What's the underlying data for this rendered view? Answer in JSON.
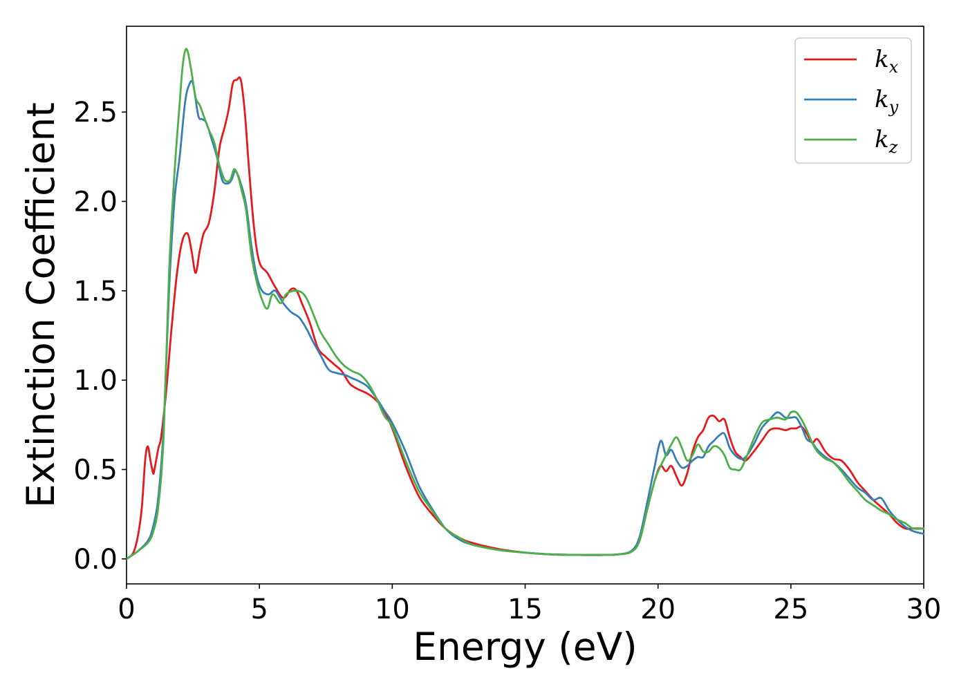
{
  "chart_data": {
    "type": "line",
    "xlabel": "Energy (eV)",
    "ylabel": "Extinction Coefficient",
    "xlim": [
      0,
      30
    ],
    "ylim": [
      -0.14,
      2.98
    ],
    "xticks": [
      0,
      5,
      10,
      15,
      20,
      25,
      30
    ],
    "xtick_labels": [
      "0",
      "5",
      "10",
      "15",
      "20",
      "25",
      "30"
    ],
    "yticks": [
      0.0,
      0.5,
      1.0,
      1.5,
      2.0,
      2.5
    ],
    "ytick_labels": [
      "0.0",
      "0.5",
      "1.0",
      "1.5",
      "2.0",
      "2.5"
    ],
    "grid": false,
    "legend_position": "top-right",
    "series": [
      {
        "name": "k",
        "subscript": "x",
        "color": "#e41a1c",
        "x": [
          0,
          0.3,
          0.55,
          0.7,
          0.8,
          0.9,
          1.0,
          1.05,
          1.2,
          1.3,
          1.5,
          1.7,
          1.9,
          2.1,
          2.3,
          2.45,
          2.6,
          2.75,
          2.9,
          3.1,
          3.3,
          3.5,
          3.7,
          3.85,
          4.0,
          4.15,
          4.3,
          4.45,
          4.6,
          4.8,
          5.0,
          5.3,
          5.6,
          5.9,
          6.2,
          6.4,
          6.6,
          6.9,
          7.2,
          7.5,
          7.8,
          8.1,
          8.4,
          8.7,
          9.0,
          9.3,
          9.6,
          10.0,
          10.5,
          11.0,
          11.5,
          12.0,
          12.5,
          13,
          14,
          15,
          16,
          17,
          18,
          18.5,
          19.0,
          19.3,
          19.6,
          19.9,
          20.1,
          20.3,
          20.5,
          20.7,
          20.9,
          21.1,
          21.3,
          21.5,
          21.7,
          21.9,
          22.1,
          22.3,
          22.5,
          22.7,
          22.9,
          23.1,
          23.3,
          23.6,
          23.9,
          24.2,
          24.5,
          24.8,
          25.0,
          25.2,
          25.4,
          25.6,
          25.8,
          26.0,
          26.3,
          26.6,
          26.9,
          27.2,
          27.5,
          27.8,
          28.1,
          28.4,
          28.7,
          29.0,
          29.3,
          29.6,
          30
        ],
        "y": [
          0.0,
          0.05,
          0.25,
          0.55,
          0.63,
          0.55,
          0.48,
          0.5,
          0.62,
          0.68,
          0.95,
          1.3,
          1.6,
          1.78,
          1.82,
          1.72,
          1.6,
          1.72,
          1.82,
          1.88,
          2.05,
          2.3,
          2.42,
          2.52,
          2.66,
          2.68,
          2.68,
          2.5,
          2.2,
          1.85,
          1.66,
          1.6,
          1.52,
          1.46,
          1.51,
          1.5,
          1.43,
          1.32,
          1.18,
          1.13,
          1.09,
          1.05,
          0.98,
          0.95,
          0.93,
          0.9,
          0.85,
          0.73,
          0.52,
          0.35,
          0.25,
          0.17,
          0.12,
          0.09,
          0.055,
          0.035,
          0.025,
          0.022,
          0.022,
          0.025,
          0.04,
          0.1,
          0.28,
          0.45,
          0.52,
          0.49,
          0.52,
          0.46,
          0.41,
          0.48,
          0.6,
          0.68,
          0.72,
          0.79,
          0.8,
          0.77,
          0.78,
          0.68,
          0.6,
          0.57,
          0.55,
          0.6,
          0.66,
          0.72,
          0.73,
          0.72,
          0.73,
          0.73,
          0.74,
          0.7,
          0.65,
          0.67,
          0.6,
          0.56,
          0.55,
          0.5,
          0.43,
          0.38,
          0.33,
          0.29,
          0.25,
          0.2,
          0.17,
          0.17,
          0.17
        ]
      },
      {
        "name": "k",
        "subscript": "y",
        "color": "#377eb8",
        "x": [
          0,
          0.4,
          0.8,
          1.0,
          1.2,
          1.4,
          1.6,
          1.8,
          2.0,
          2.2,
          2.35,
          2.5,
          2.7,
          2.85,
          3.0,
          3.2,
          3.4,
          3.6,
          3.8,
          3.95,
          4.1,
          4.3,
          4.5,
          4.7,
          4.9,
          5.1,
          5.35,
          5.6,
          5.9,
          6.2,
          6.5,
          6.8,
          7.0,
          7.3,
          7.6,
          7.9,
          8.2,
          8.5,
          8.8,
          9.1,
          9.4,
          9.7,
          10.0,
          10.5,
          11.0,
          11.5,
          12.0,
          12.5,
          13,
          14,
          15,
          16,
          17,
          18,
          18.5,
          19.0,
          19.3,
          19.6,
          19.85,
          20.1,
          20.3,
          20.5,
          20.7,
          20.9,
          21.1,
          21.3,
          21.5,
          21.7,
          21.9,
          22.1,
          22.3,
          22.5,
          22.7,
          22.9,
          23.1,
          23.3,
          23.6,
          23.9,
          24.2,
          24.5,
          24.8,
          25.0,
          25.2,
          25.4,
          25.6,
          25.8,
          26.0,
          26.3,
          26.6,
          26.9,
          27.2,
          27.5,
          27.8,
          28.1,
          28.4,
          28.7,
          29.0,
          29.3,
          29.6,
          30
        ],
        "y": [
          0.0,
          0.04,
          0.1,
          0.18,
          0.35,
          0.75,
          1.5,
          2.0,
          2.25,
          2.55,
          2.65,
          2.66,
          2.48,
          2.46,
          2.44,
          2.35,
          2.25,
          2.12,
          2.1,
          2.12,
          2.17,
          2.1,
          1.98,
          1.75,
          1.58,
          1.5,
          1.48,
          1.5,
          1.43,
          1.38,
          1.35,
          1.28,
          1.22,
          1.14,
          1.06,
          1.04,
          1.03,
          1.01,
          0.99,
          0.96,
          0.9,
          0.83,
          0.76,
          0.6,
          0.41,
          0.28,
          0.17,
          0.11,
          0.08,
          0.05,
          0.035,
          0.025,
          0.022,
          0.022,
          0.025,
          0.045,
          0.12,
          0.32,
          0.5,
          0.66,
          0.58,
          0.61,
          0.55,
          0.51,
          0.52,
          0.55,
          0.57,
          0.57,
          0.63,
          0.66,
          0.69,
          0.7,
          0.62,
          0.58,
          0.56,
          0.57,
          0.64,
          0.73,
          0.78,
          0.82,
          0.79,
          0.79,
          0.79,
          0.74,
          0.67,
          0.65,
          0.61,
          0.57,
          0.54,
          0.5,
          0.45,
          0.4,
          0.37,
          0.33,
          0.34,
          0.27,
          0.22,
          0.18,
          0.155,
          0.14
        ]
      },
      {
        "name": "k",
        "subscript": "z",
        "color": "#4daf4a",
        "x": [
          0,
          0.4,
          0.8,
          1.0,
          1.2,
          1.4,
          1.6,
          1.8,
          2.0,
          2.1,
          2.2,
          2.3,
          2.45,
          2.6,
          2.75,
          2.9,
          3.1,
          3.3,
          3.5,
          3.7,
          3.9,
          4.05,
          4.2,
          4.35,
          4.5,
          4.7,
          4.9,
          5.1,
          5.3,
          5.5,
          5.8,
          6.0,
          6.3,
          6.6,
          6.8,
          7.0,
          7.3,
          7.6,
          7.9,
          8.2,
          8.5,
          8.8,
          9.1,
          9.4,
          9.7,
          10.0,
          10.5,
          11.0,
          11.5,
          12.0,
          12.5,
          13,
          14,
          15,
          16,
          17,
          18,
          18.5,
          19.0,
          19.3,
          19.6,
          19.9,
          20.1,
          20.3,
          20.5,
          20.7,
          20.9,
          21.1,
          21.3,
          21.5,
          21.7,
          21.9,
          22.1,
          22.3,
          22.5,
          22.7,
          22.9,
          23.1,
          23.3,
          23.6,
          23.9,
          24.2,
          24.5,
          24.8,
          25.0,
          25.2,
          25.4,
          25.6,
          25.8,
          26.0,
          26.3,
          26.6,
          26.9,
          27.2,
          27.5,
          27.8,
          28.1,
          28.4,
          28.7,
          29.0,
          29.3,
          29.6,
          30
        ],
        "y": [
          0.0,
          0.04,
          0.09,
          0.15,
          0.3,
          0.7,
          1.6,
          2.15,
          2.55,
          2.74,
          2.84,
          2.84,
          2.72,
          2.58,
          2.54,
          2.48,
          2.4,
          2.33,
          2.2,
          2.12,
          2.12,
          2.18,
          2.14,
          2.05,
          1.95,
          1.7,
          1.55,
          1.45,
          1.4,
          1.48,
          1.43,
          1.48,
          1.5,
          1.49,
          1.45,
          1.38,
          1.27,
          1.2,
          1.13,
          1.08,
          1.05,
          1.03,
          0.98,
          0.9,
          0.8,
          0.74,
          0.55,
          0.38,
          0.27,
          0.17,
          0.12,
          0.08,
          0.05,
          0.035,
          0.025,
          0.022,
          0.022,
          0.025,
          0.04,
          0.1,
          0.28,
          0.45,
          0.52,
          0.58,
          0.64,
          0.68,
          0.62,
          0.55,
          0.58,
          0.64,
          0.6,
          0.6,
          0.63,
          0.62,
          0.58,
          0.51,
          0.5,
          0.5,
          0.56,
          0.67,
          0.76,
          0.78,
          0.79,
          0.78,
          0.82,
          0.82,
          0.78,
          0.72,
          0.65,
          0.6,
          0.56,
          0.54,
          0.49,
          0.43,
          0.38,
          0.33,
          0.3,
          0.27,
          0.25,
          0.22,
          0.2,
          0.17,
          0.17
        ]
      }
    ]
  }
}
